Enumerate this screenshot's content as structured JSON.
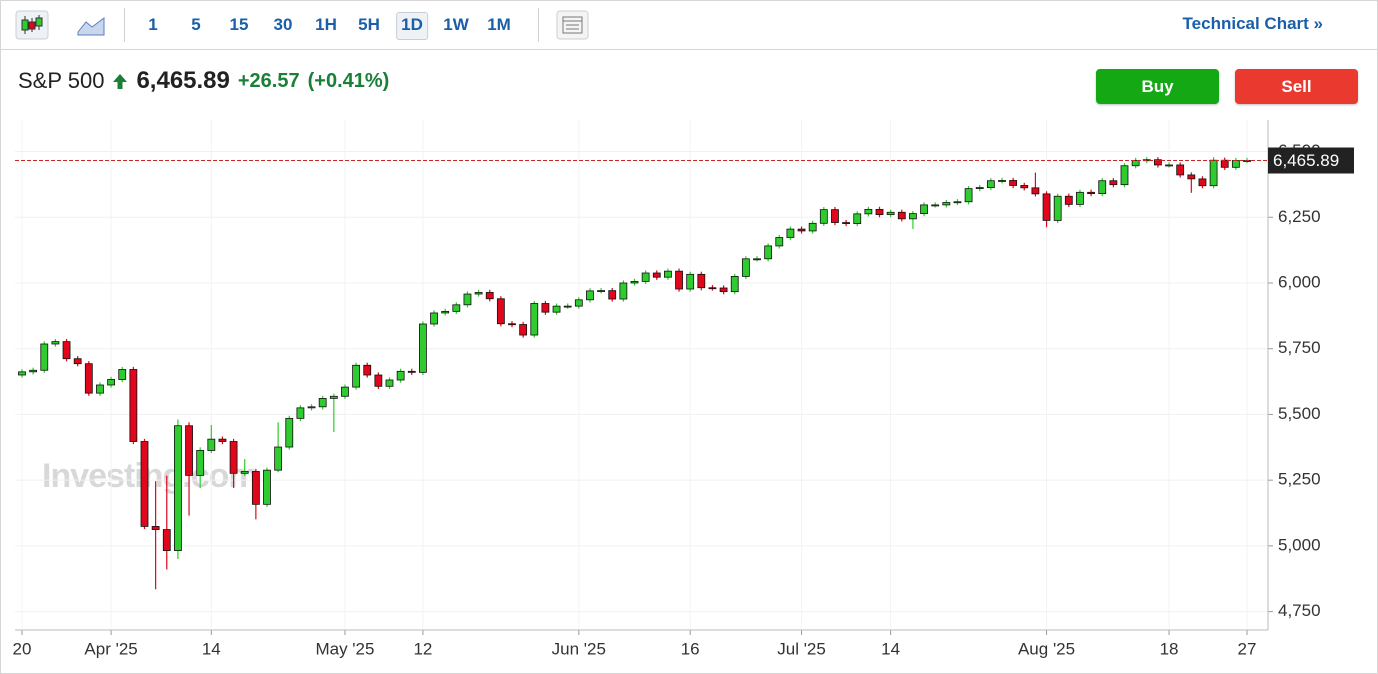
{
  "toolbar": {
    "intervals": [
      "1",
      "5",
      "15",
      "30",
      "1H",
      "5H",
      "1D",
      "1W",
      "1M"
    ],
    "selected": 6,
    "link": "Technical Chart »"
  },
  "header": {
    "name": "S&P 500",
    "price": "6,465.89",
    "change": "+26.57",
    "change_pct": "(+0.41%)"
  },
  "buttons": {
    "buy": "Buy",
    "sell": "Sell"
  },
  "chart_data": {
    "type": "candlestick",
    "watermark": "Investing.com",
    "categories": [
      "20",
      null,
      null,
      null,
      null,
      null,
      null,
      null,
      "Apr '25",
      null,
      null,
      null,
      null,
      null,
      null,
      null,
      null,
      "14",
      null,
      null,
      null,
      null,
      null,
      null,
      null,
      null,
      null,
      null,
      null,
      "May '25",
      null,
      null,
      null,
      null,
      null,
      null,
      "12",
      null,
      null,
      null,
      null,
      null,
      null,
      null,
      null,
      null,
      null,
      null,
      null,
      null,
      "Jun '25",
      null,
      null,
      null,
      null,
      null,
      null,
      null,
      null,
      null,
      "16",
      null,
      null,
      null,
      null,
      null,
      null,
      null,
      null,
      null,
      "Jul '25",
      null,
      null,
      null,
      null,
      null,
      null,
      null,
      "14",
      null,
      null,
      null,
      null,
      null,
      null,
      null,
      null,
      null,
      null,
      null,
      null,
      null,
      "Aug '25",
      null,
      null,
      null,
      null,
      null,
      null,
      null,
      null,
      null,
      null,
      "18",
      null,
      null,
      null,
      null,
      null,
      null,
      "27"
    ],
    "open": [
      5650,
      5662,
      5668,
      5768,
      5777,
      5712,
      5693,
      5581,
      5612,
      5633,
      5671,
      5397,
      5074,
      5062,
      4982,
      5457,
      5268,
      5363,
      5406,
      5397,
      5276,
      5283,
      5158,
      5288,
      5376,
      5485,
      5525,
      5529,
      5561,
      5569,
      5604,
      5687,
      5650,
      5607,
      5631,
      5664,
      5660,
      5844,
      5886,
      5892,
      5917,
      5958,
      5964,
      5940,
      5845,
      5842,
      5802,
      5922,
      5889,
      5912,
      5912,
      5936,
      5970,
      5971,
      5939,
      6000,
      6006,
      6038,
      6022,
      6045,
      5977,
      6033,
      5982,
      5981,
      5967,
      6025,
      6092,
      6092,
      6141,
      6173,
      6205,
      6198,
      6227,
      6279,
      6230,
      6226,
      6263,
      6280,
      6260,
      6269,
      6244,
      6264,
      6297,
      6297,
      6306,
      6309,
      6359,
      6363,
      6389,
      6390,
      6371,
      6362,
      6339,
      6238,
      6330,
      6299,
      6345,
      6340,
      6389,
      6374,
      6446,
      6466,
      6469,
      6449,
      6449,
      6411,
      6396,
      6370,
      6467,
      6440,
      6466
    ],
    "high": [
      5672,
      5678,
      5778,
      5787,
      5787,
      5722,
      5703,
      5622,
      5643,
      5681,
      5681,
      5407,
      5246,
      5267,
      5481,
      5470,
      5375,
      5460,
      5416,
      5407,
      5330,
      5293,
      5298,
      5470,
      5495,
      5535,
      5539,
      5571,
      5579,
      5614,
      5697,
      5697,
      5660,
      5641,
      5674,
      5674,
      5854,
      5896,
      5902,
      5927,
      5968,
      5974,
      5974,
      5950,
      5855,
      5852,
      5932,
      5932,
      5922,
      5922,
      5946,
      5980,
      5981,
      5981,
      6010,
      6016,
      6048,
      6048,
      6055,
      6055,
      6043,
      6043,
      5992,
      5991,
      6035,
      6102,
      6102,
      6151,
      6183,
      6215,
      6215,
      6237,
      6289,
      6289,
      6240,
      6273,
      6290,
      6290,
      6279,
      6279,
      6274,
      6307,
      6307,
      6316,
      6319,
      6369,
      6373,
      6399,
      6400,
      6400,
      6381,
      6420,
      6349,
      6340,
      6340,
      6355,
      6355,
      6399,
      6399,
      6456,
      6476,
      6479,
      6479,
      6459,
      6459,
      6421,
      6406,
      6479,
      6477,
      6476,
      6476
    ],
    "low": [
      5640,
      5652,
      5658,
      5758,
      5702,
      5683,
      5571,
      5571,
      5602,
      5623,
      5387,
      5064,
      4835,
      4910,
      4950,
      5115,
      5220,
      5353,
      5387,
      5220,
      5266,
      5101,
      5148,
      5280,
      5366,
      5475,
      5515,
      5519,
      5433,
      5559,
      5594,
      5640,
      5597,
      5597,
      5621,
      5650,
      5650,
      5834,
      5876,
      5882,
      5907,
      5948,
      5930,
      5835,
      5832,
      5792,
      5792,
      5879,
      5879,
      5902,
      5902,
      5926,
      5960,
      5929,
      5929,
      5990,
      5996,
      6012,
      6012,
      5967,
      5967,
      5972,
      5971,
      5957,
      5957,
      6015,
      6082,
      6082,
      6131,
      6163,
      6188,
      6188,
      6217,
      6220,
      6216,
      6216,
      6253,
      6250,
      6250,
      6234,
      6205,
      6254,
      6287,
      6287,
      6296,
      6299,
      6349,
      6353,
      6379,
      6361,
      6352,
      6329,
      6212,
      6228,
      6289,
      6289,
      6330,
      6330,
      6364,
      6364,
      6436,
      6456,
      6439,
      6439,
      6401,
      6343,
      6360,
      6360,
      6430,
      6430,
      6456
    ],
    "close": [
      5662,
      5668,
      5768,
      5777,
      5712,
      5693,
      5581,
      5612,
      5633,
      5671,
      5397,
      5074,
      5062,
      4982,
      5457,
      5268,
      5363,
      5406,
      5397,
      5276,
      5283,
      5158,
      5288,
      5376,
      5485,
      5525,
      5529,
      5561,
      5569,
      5604,
      5687,
      5650,
      5607,
      5631,
      5664,
      5660,
      5844,
      5886,
      5892,
      5917,
      5958,
      5964,
      5940,
      5845,
      5842,
      5802,
      5922,
      5889,
      5912,
      5912,
      5936,
      5970,
      5971,
      5939,
      6000,
      6006,
      6038,
      6022,
      6045,
      5977,
      6033,
      5982,
      5981,
      5967,
      6025,
      6092,
      6092,
      6141,
      6173,
      6205,
      6198,
      6227,
      6279,
      6230,
      6226,
      6263,
      6280,
      6260,
      6269,
      6244,
      6264,
      6297,
      6297,
      6306,
      6309,
      6359,
      6363,
      6389,
      6390,
      6371,
      6362,
      6339,
      6238,
      6330,
      6299,
      6345,
      6340,
      6389,
      6374,
      6446,
      6466,
      6469,
      6449,
      6449,
      6411,
      6396,
      6370,
      6467,
      6440,
      6466,
      6466
    ],
    "up_color": "#2ecc2e",
    "down_color": "#e0061b",
    "price_line": {
      "value": 6465.89,
      "label": "6,465.89",
      "color": "#c62828"
    },
    "ylim": [
      4680,
      6620
    ],
    "yticks": [
      {
        "value": 4750,
        "label": "4,750"
      },
      {
        "value": 5000,
        "label": "5,000"
      },
      {
        "value": 5250,
        "label": "5,250"
      },
      {
        "value": 5500,
        "label": "5,500"
      },
      {
        "value": 5750,
        "label": "5,750"
      },
      {
        "value": 6000,
        "label": "6,000"
      },
      {
        "value": 6250,
        "label": "6,250"
      },
      {
        "value": 6500,
        "label": "6,500"
      }
    ],
    "grid": true
  }
}
